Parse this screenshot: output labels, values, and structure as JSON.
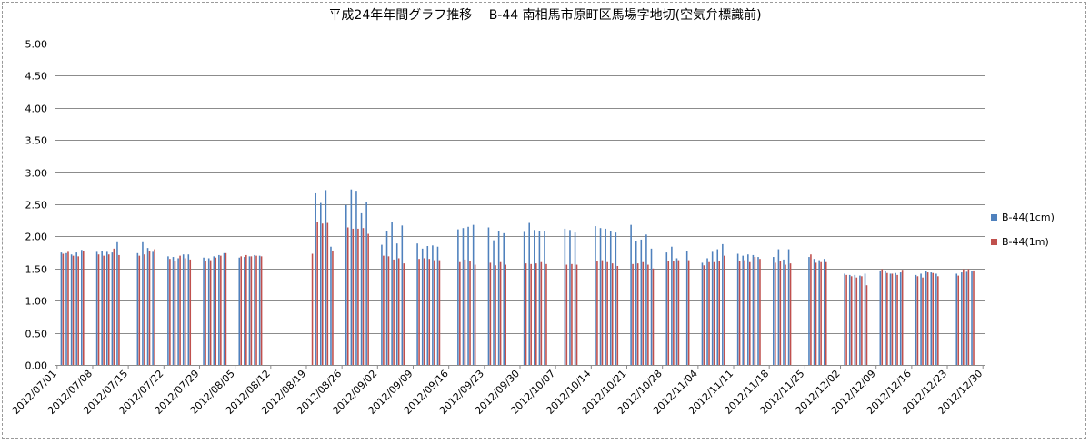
{
  "chart_data": {
    "type": "bar",
    "title": "平成24年年間グラフ推移　 B-44 南相馬市原町区馬場字地切(空気弁標識前)",
    "xlabel": "",
    "ylabel": "",
    "ylim": [
      0,
      5
    ],
    "yticks": [
      "0.00",
      "0.50",
      "1.00",
      "1.50",
      "2.00",
      "2.50",
      "3.00",
      "3.50",
      "4.00",
      "4.50",
      "5.00"
    ],
    "xticks": [
      "2012/07/01",
      "2012/07/08",
      "2012/07/15",
      "2012/07/22",
      "2012/07/29",
      "2012/08/05",
      "2012/08/12",
      "2012/08/19",
      "2012/08/26",
      "2012/09/02",
      "2012/09/09",
      "2012/09/16",
      "2012/09/23",
      "2012/09/30",
      "2012/10/07",
      "2012/10/14",
      "2012/10/21",
      "2012/10/28",
      "2012/11/04",
      "2012/11/11",
      "2012/11/18",
      "2012/11/25",
      "2012/12/02",
      "2012/12/09",
      "2012/12/16",
      "2012/12/23",
      "2012/12/30"
    ],
    "x_start": "2012-07-01",
    "x_end": "2012-12-30",
    "grid": "y",
    "legend": "right",
    "colors": {
      "B-44(1cm)": "#4f81bd",
      "B-44(1m)": "#c0504d"
    },
    "series": [
      {
        "name": "B-44(1cm)",
        "x": [
          "2012-07-02",
          "2012-07-03",
          "2012-07-04",
          "2012-07-05",
          "2012-07-06",
          "2012-07-09",
          "2012-07-10",
          "2012-07-11",
          "2012-07-12",
          "2012-07-13",
          "2012-07-17",
          "2012-07-18",
          "2012-07-19",
          "2012-07-20",
          "2012-07-23",
          "2012-07-24",
          "2012-07-25",
          "2012-07-26",
          "2012-07-27",
          "2012-07-30",
          "2012-07-31",
          "2012-08-01",
          "2012-08-02",
          "2012-08-03",
          "2012-08-06",
          "2012-08-07",
          "2012-08-08",
          "2012-08-09",
          "2012-08-10",
          "2012-08-21",
          "2012-08-22",
          "2012-08-23",
          "2012-08-24",
          "2012-08-27",
          "2012-08-28",
          "2012-08-29",
          "2012-08-30",
          "2012-08-31",
          "2012-09-03",
          "2012-09-04",
          "2012-09-05",
          "2012-09-06",
          "2012-09-07",
          "2012-09-10",
          "2012-09-11",
          "2012-09-12",
          "2012-09-13",
          "2012-09-14",
          "2012-09-18",
          "2012-09-19",
          "2012-09-20",
          "2012-09-21",
          "2012-09-24",
          "2012-09-25",
          "2012-09-26",
          "2012-09-27",
          "2012-10-01",
          "2012-10-02",
          "2012-10-03",
          "2012-10-04",
          "2012-10-05",
          "2012-10-09",
          "2012-10-10",
          "2012-10-11",
          "2012-10-15",
          "2012-10-16",
          "2012-10-17",
          "2012-10-18",
          "2012-10-19",
          "2012-10-22",
          "2012-10-23",
          "2012-10-24",
          "2012-10-25",
          "2012-10-26",
          "2012-10-29",
          "2012-10-30",
          "2012-10-31",
          "2012-11-02",
          "2012-11-05",
          "2012-11-06",
          "2012-11-07",
          "2012-11-08",
          "2012-11-09",
          "2012-11-12",
          "2012-11-13",
          "2012-11-14",
          "2012-11-15",
          "2012-11-16",
          "2012-11-19",
          "2012-11-20",
          "2012-11-21",
          "2012-11-22",
          "2012-11-26",
          "2012-11-27",
          "2012-11-28",
          "2012-11-29",
          "2012-12-03",
          "2012-12-04",
          "2012-12-05",
          "2012-12-06",
          "2012-12-07",
          "2012-12-10",
          "2012-12-11",
          "2012-12-12",
          "2012-12-13",
          "2012-12-14",
          "2012-12-17",
          "2012-12-18",
          "2012-12-19",
          "2012-12-20",
          "2012-12-21",
          "2012-12-25",
          "2012-12-26",
          "2012-12-27",
          "2012-12-28"
        ],
        "values": [
          1.75,
          1.74,
          1.72,
          1.75,
          1.79,
          1.76,
          1.77,
          1.76,
          1.75,
          1.91,
          1.74,
          1.91,
          1.82,
          1.76,
          1.69,
          1.68,
          1.66,
          1.72,
          1.72,
          1.67,
          1.66,
          1.69,
          1.71,
          1.74,
          1.67,
          1.68,
          1.69,
          1.71,
          1.7,
          2.67,
          2.52,
          2.72,
          1.84,
          2.49,
          2.73,
          2.71,
          2.36,
          2.53,
          1.87,
          2.09,
          2.22,
          1.89,
          2.17,
          1.89,
          1.81,
          1.85,
          1.86,
          1.84,
          2.11,
          2.13,
          2.15,
          2.18,
          2.14,
          1.94,
          2.09,
          2.05,
          2.07,
          2.21,
          2.1,
          2.08,
          2.08,
          2.12,
          2.1,
          2.06,
          2.16,
          2.13,
          2.12,
          2.08,
          2.06,
          2.18,
          1.93,
          1.95,
          2.03,
          1.81,
          1.75,
          1.84,
          1.66,
          1.77,
          1.59,
          1.66,
          1.76,
          1.8,
          1.88,
          1.73,
          1.7,
          1.72,
          1.71,
          1.68,
          1.68,
          1.8,
          1.64,
          1.8,
          1.68,
          1.65,
          1.63,
          1.65,
          1.42,
          1.4,
          1.4,
          1.39,
          1.42,
          1.47,
          1.46,
          1.42,
          1.43,
          1.44,
          1.4,
          1.42,
          1.46,
          1.44,
          1.42,
          1.42,
          1.44,
          1.45,
          1.46
        ]
      },
      {
        "name": "B-44(1m)",
        "x": [
          "2012-07-02",
          "2012-07-03",
          "2012-07-04",
          "2012-07-05",
          "2012-07-06",
          "2012-07-09",
          "2012-07-10",
          "2012-07-11",
          "2012-07-12",
          "2012-07-13",
          "2012-07-17",
          "2012-07-18",
          "2012-07-19",
          "2012-07-20",
          "2012-07-23",
          "2012-07-24",
          "2012-07-25",
          "2012-07-26",
          "2012-07-27",
          "2012-07-30",
          "2012-07-31",
          "2012-08-01",
          "2012-08-02",
          "2012-08-03",
          "2012-08-06",
          "2012-08-07",
          "2012-08-08",
          "2012-08-09",
          "2012-08-10",
          "2012-08-20",
          "2012-08-21",
          "2012-08-22",
          "2012-08-23",
          "2012-08-24",
          "2012-08-27",
          "2012-08-28",
          "2012-08-29",
          "2012-08-30",
          "2012-08-31",
          "2012-09-03",
          "2012-09-04",
          "2012-09-05",
          "2012-09-06",
          "2012-09-07",
          "2012-09-10",
          "2012-09-11",
          "2012-09-12",
          "2012-09-13",
          "2012-09-14",
          "2012-09-18",
          "2012-09-19",
          "2012-09-20",
          "2012-09-21",
          "2012-09-24",
          "2012-09-25",
          "2012-09-26",
          "2012-09-27",
          "2012-10-01",
          "2012-10-02",
          "2012-10-03",
          "2012-10-04",
          "2012-10-05",
          "2012-10-09",
          "2012-10-10",
          "2012-10-11",
          "2012-10-15",
          "2012-10-16",
          "2012-10-17",
          "2012-10-18",
          "2012-10-19",
          "2012-10-22",
          "2012-10-23",
          "2012-10-24",
          "2012-10-25",
          "2012-10-26",
          "2012-10-29",
          "2012-10-30",
          "2012-10-31",
          "2012-11-02",
          "2012-11-05",
          "2012-11-06",
          "2012-11-07",
          "2012-11-08",
          "2012-11-09",
          "2012-11-12",
          "2012-11-13",
          "2012-11-14",
          "2012-11-15",
          "2012-11-16",
          "2012-11-19",
          "2012-11-20",
          "2012-11-21",
          "2012-11-22",
          "2012-11-26",
          "2012-11-27",
          "2012-11-28",
          "2012-11-29",
          "2012-12-03",
          "2012-12-04",
          "2012-12-05",
          "2012-12-06",
          "2012-12-07",
          "2012-12-10",
          "2012-12-11",
          "2012-12-12",
          "2012-12-13",
          "2012-12-14",
          "2012-12-17",
          "2012-12-18",
          "2012-12-19",
          "2012-12-20",
          "2012-12-21",
          "2012-12-25",
          "2012-12-26",
          "2012-12-27",
          "2012-12-28"
        ],
        "values": [
          1.73,
          1.76,
          1.7,
          1.69,
          1.78,
          1.72,
          1.7,
          1.72,
          1.81,
          1.71,
          1.7,
          1.72,
          1.77,
          1.8,
          1.65,
          1.62,
          1.7,
          1.66,
          1.64,
          1.62,
          1.63,
          1.67,
          1.7,
          1.74,
          1.69,
          1.71,
          1.69,
          1.7,
          1.69,
          1.73,
          2.22,
          2.2,
          2.21,
          1.78,
          2.14,
          2.12,
          2.12,
          2.13,
          2.04,
          1.7,
          1.69,
          1.64,
          1.66,
          1.58,
          1.65,
          1.66,
          1.65,
          1.63,
          1.63,
          1.6,
          1.64,
          1.62,
          1.56,
          1.59,
          1.55,
          1.6,
          1.56,
          1.58,
          1.57,
          1.58,
          1.6,
          1.57,
          1.56,
          1.57,
          1.56,
          1.62,
          1.63,
          1.6,
          1.58,
          1.54,
          1.57,
          1.58,
          1.6,
          1.56,
          1.5,
          1.62,
          1.62,
          1.63,
          1.63,
          1.55,
          1.6,
          1.6,
          1.62,
          1.7,
          1.62,
          1.63,
          1.6,
          1.68,
          1.65,
          1.59,
          1.62,
          1.56,
          1.58,
          1.72,
          1.59,
          1.6,
          1.6,
          1.4,
          1.38,
          1.36,
          1.38,
          1.24,
          1.49,
          1.43,
          1.42,
          1.4,
          1.48,
          1.38,
          1.36,
          1.44,
          1.43,
          1.38,
          1.39,
          1.49,
          1.49,
          1.47
        ]
      }
    ]
  }
}
